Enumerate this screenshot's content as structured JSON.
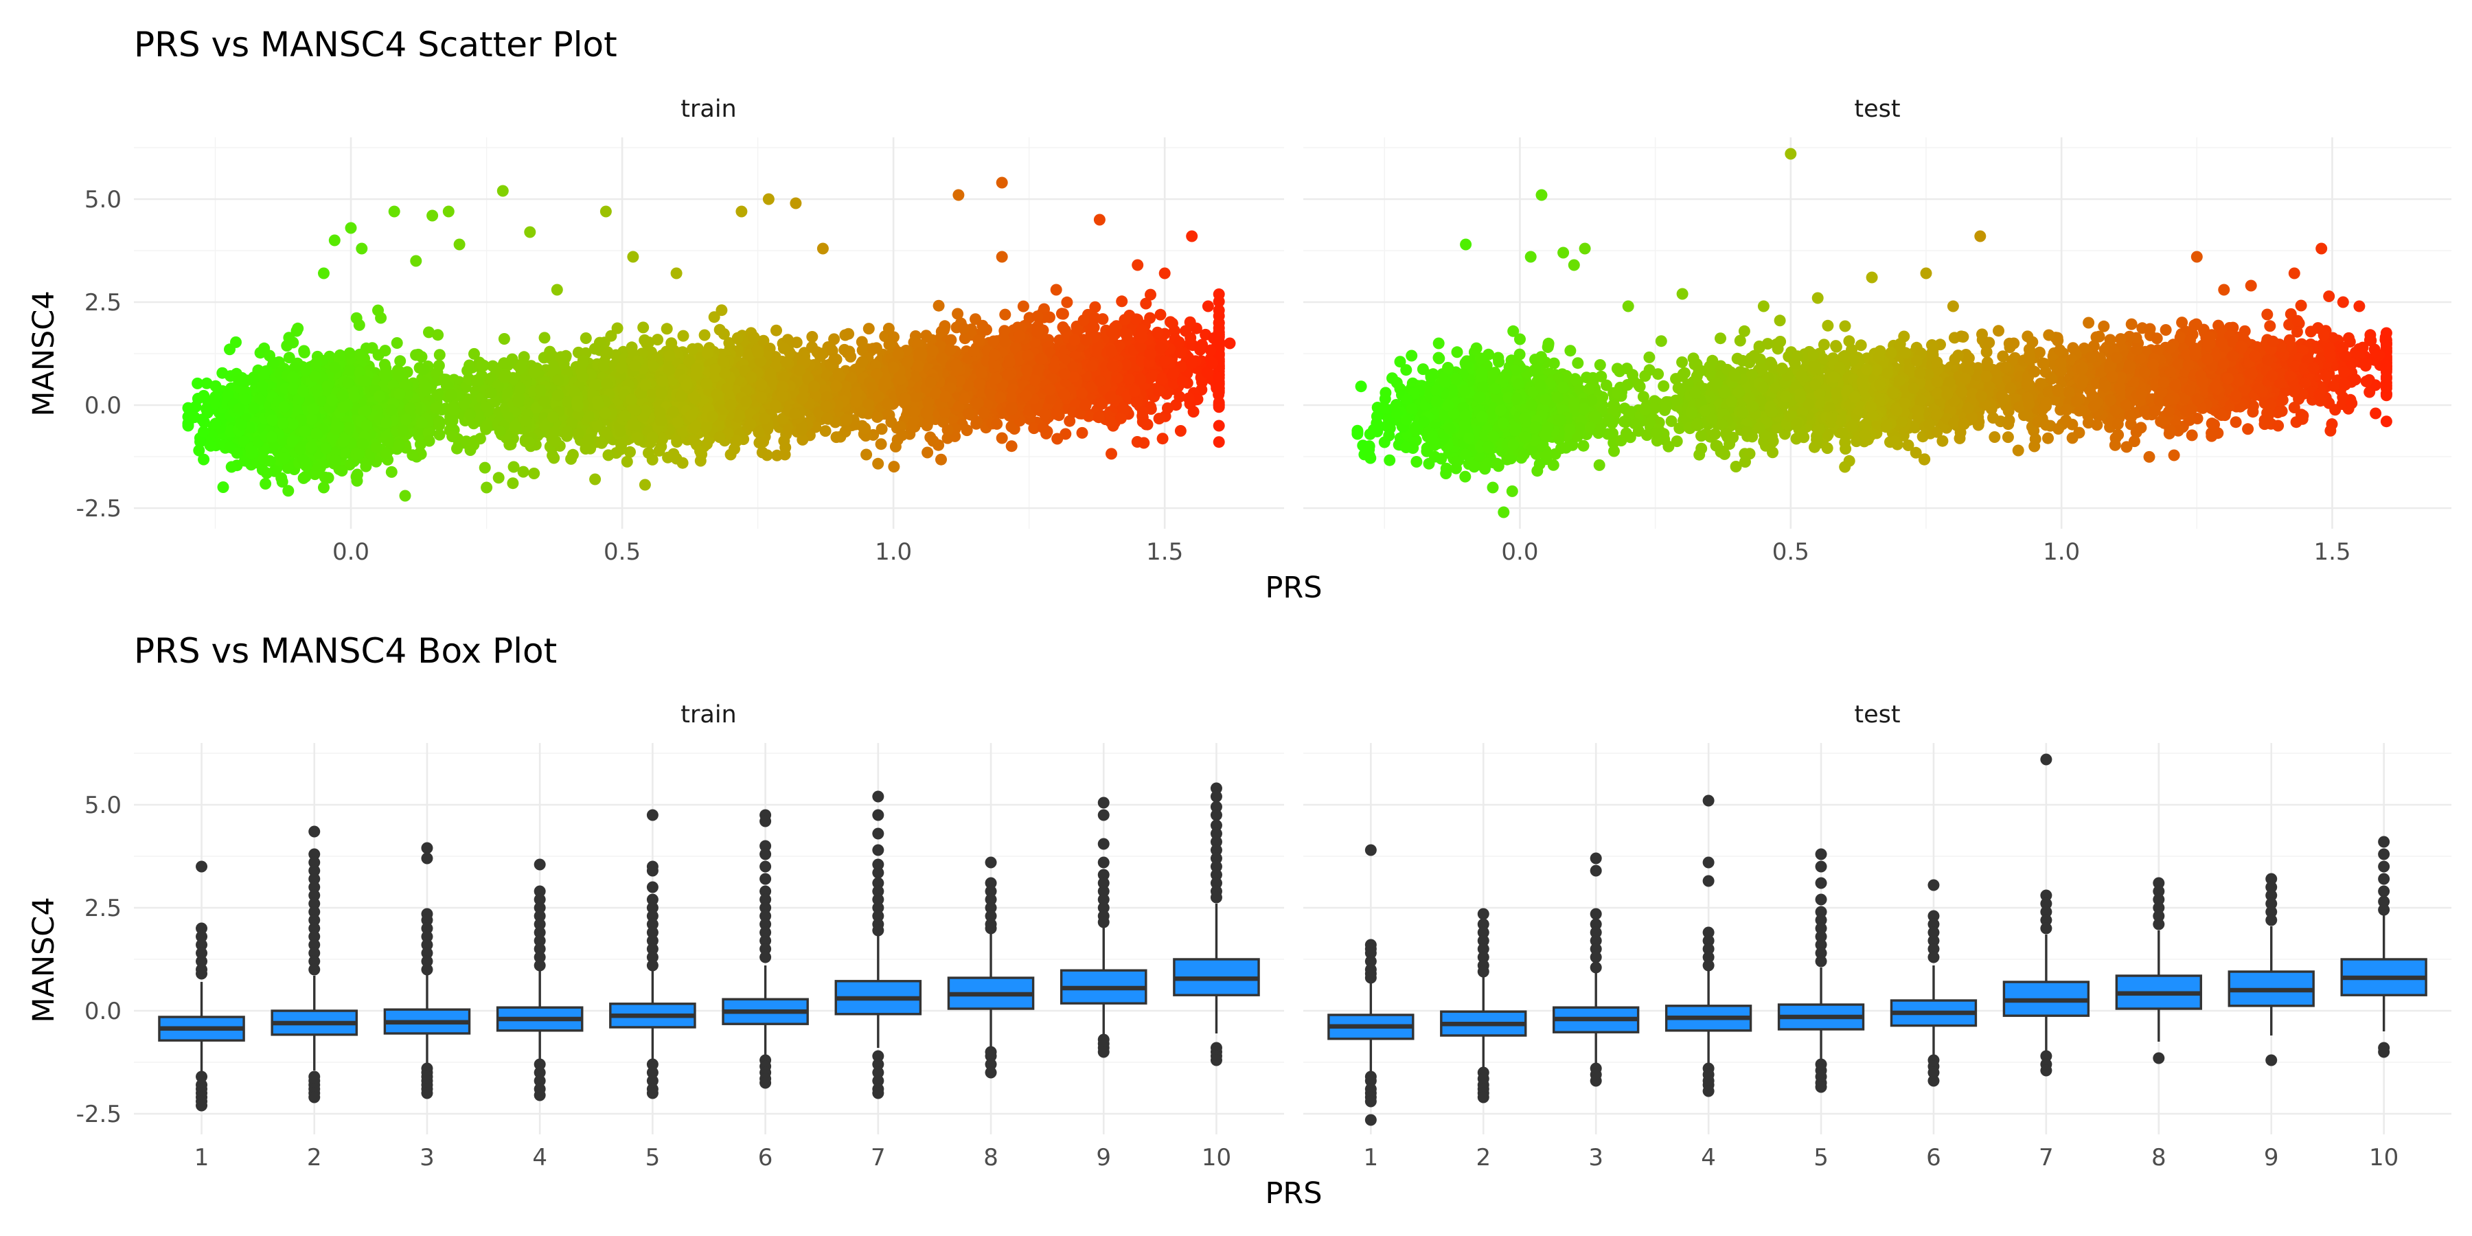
{
  "chart_data": [
    {
      "type": "scatter",
      "title": "PRS vs MANSC4 Scatter Plot",
      "xlabel": "PRS",
      "ylabel": "MANSC4",
      "facets": [
        "train",
        "test"
      ],
      "xlim": [
        -0.4,
        1.72
      ],
      "ylim": [
        -3.0,
        6.5
      ],
      "x_ticks": [
        0.0,
        0.5,
        1.0,
        1.5
      ],
      "x_tick_labels": [
        "0.0",
        "0.5",
        "1.0",
        "1.5"
      ],
      "y_ticks": [
        -2.5,
        0.0,
        2.5,
        5.0
      ],
      "y_tick_labels": [
        "-2.5",
        "0.0",
        "2.5",
        "5.0"
      ],
      "grid": true,
      "color_scale": {
        "low": "#33ff00",
        "mid": "#b3b300",
        "high": "#ff2200"
      },
      "points": {
        "train": [
          [
            -0.3,
            -0.5
          ],
          [
            -0.28,
            -1.1
          ],
          [
            -0.25,
            0.2
          ],
          [
            -0.22,
            -1.5
          ],
          [
            -0.2,
            0.6
          ],
          [
            -0.15,
            1.2
          ],
          [
            -0.1,
            1.8
          ],
          [
            -0.05,
            3.2
          ],
          [
            -0.03,
            4.0
          ],
          [
            0.0,
            4.3
          ],
          [
            0.02,
            3.8
          ],
          [
            0.05,
            2.3
          ],
          [
            0.08,
            4.7
          ],
          [
            0.12,
            3.5
          ],
          [
            0.15,
            4.6
          ],
          [
            0.18,
            4.7
          ],
          [
            0.2,
            3.9
          ],
          [
            0.28,
            5.2
          ],
          [
            0.33,
            4.2
          ],
          [
            0.38,
            2.8
          ],
          [
            0.47,
            4.7
          ],
          [
            0.52,
            3.6
          ],
          [
            0.6,
            3.2
          ],
          [
            0.72,
            4.7
          ],
          [
            0.77,
            5.0
          ],
          [
            0.82,
            4.9
          ],
          [
            0.87,
            3.8
          ],
          [
            0.95,
            -1.2
          ],
          [
            1.12,
            5.1
          ],
          [
            1.2,
            5.4
          ],
          [
            1.2,
            3.6
          ],
          [
            1.3,
            2.8
          ],
          [
            1.38,
            4.5
          ],
          [
            1.45,
            3.4
          ],
          [
            1.5,
            3.2
          ],
          [
            1.55,
            4.1
          ],
          [
            1.58,
            2.4
          ],
          [
            1.6,
            -0.5
          ],
          [
            1.62,
            1.5
          ],
          [
            1.1,
            -0.6
          ],
          [
            1.2,
            -0.8
          ],
          [
            0.45,
            -1.8
          ],
          [
            0.25,
            -2.0
          ],
          [
            0.1,
            -2.2
          ],
          [
            -0.05,
            -2.0
          ],
          [
            0.3,
            -1.5
          ],
          [
            0.6,
            -1.3
          ],
          [
            0.7,
            -1.2
          ],
          [
            0.8,
            -1.2
          ],
          [
            1.4,
            -0.4
          ]
        ],
        "test": [
          [
            -0.3,
            -0.7
          ],
          [
            -0.27,
            -0.6
          ],
          [
            -0.25,
            -0.9
          ],
          [
            -0.2,
            1.2
          ],
          [
            -0.15,
            1.5
          ],
          [
            -0.1,
            3.9
          ],
          [
            -0.05,
            -2.0
          ],
          [
            -0.03,
            -2.6
          ],
          [
            0.0,
            1.6
          ],
          [
            0.02,
            3.6
          ],
          [
            0.04,
            5.1
          ],
          [
            0.08,
            3.7
          ],
          [
            0.1,
            3.4
          ],
          [
            0.12,
            3.8
          ],
          [
            0.2,
            2.4
          ],
          [
            0.3,
            2.7
          ],
          [
            0.45,
            2.4
          ],
          [
            0.5,
            6.1
          ],
          [
            0.55,
            2.6
          ],
          [
            0.6,
            -1.5
          ],
          [
            0.65,
            3.1
          ],
          [
            0.75,
            3.2
          ],
          [
            0.8,
            2.4
          ],
          [
            0.85,
            4.1
          ],
          [
            0.95,
            -1.0
          ],
          [
            1.05,
            2.0
          ],
          [
            1.2,
            -0.6
          ],
          [
            1.25,
            3.6
          ],
          [
            1.3,
            2.8
          ],
          [
            1.35,
            2.9
          ],
          [
            1.38,
            2.2
          ],
          [
            1.43,
            3.2
          ],
          [
            1.48,
            3.8
          ],
          [
            1.52,
            2.5
          ],
          [
            1.55,
            2.4
          ],
          [
            1.58,
            1.2
          ],
          [
            1.58,
            -0.2
          ],
          [
            1.4,
            -0.5
          ],
          [
            1.1,
            -0.8
          ]
        ]
      }
    },
    {
      "type": "box",
      "title": "PRS vs MANSC4 Box Plot",
      "xlabel": "PRS",
      "ylabel": "MANSC4",
      "facets": [
        "train",
        "test"
      ],
      "categories": [
        "1",
        "2",
        "3",
        "4",
        "5",
        "6",
        "7",
        "8",
        "9",
        "10"
      ],
      "ylim": [
        -3.0,
        6.5
      ],
      "y_ticks": [
        -2.5,
        0.0,
        2.5,
        5.0
      ],
      "y_tick_labels": [
        "-2.5",
        "0.0",
        "2.5",
        "5.0"
      ],
      "grid": true,
      "box_fill": "#1e90ff",
      "box_line": "#333333",
      "boxes": {
        "train": [
          {
            "q1": -0.72,
            "median": -0.43,
            "q3": -0.15,
            "whisker_low": -1.55,
            "whisker_high": 0.7,
            "outliers": [
              3.5,
              2.0,
              1.8,
              1.6,
              1.4,
              1.2,
              1.0,
              0.9,
              -1.6,
              -1.8,
              -1.9,
              -2.0,
              -2.1,
              -2.2,
              -2.3
            ]
          },
          {
            "q1": -0.58,
            "median": -0.3,
            "q3": 0.0,
            "whisker_low": -1.45,
            "whisker_high": 0.85,
            "outliers": [
              4.35,
              3.8,
              3.6,
              3.4,
              3.2,
              3.0,
              2.8,
              2.6,
              2.4,
              2.2,
              2.0,
              1.8,
              1.6,
              1.4,
              1.2,
              1.0,
              -1.6,
              -1.7,
              -1.8,
              -1.9,
              -2.0,
              -2.1
            ]
          },
          {
            "q1": -0.55,
            "median": -0.28,
            "q3": 0.03,
            "whisker_low": -1.3,
            "whisker_high": 0.95,
            "outliers": [
              3.95,
              3.7,
              2.35,
              2.2,
              2.0,
              1.8,
              1.6,
              1.4,
              1.2,
              1.0,
              -1.4,
              -1.5,
              -1.6,
              -1.7,
              -1.8,
              -1.9,
              -2.0
            ]
          },
          {
            "q1": -0.48,
            "median": -0.2,
            "q3": 0.08,
            "whisker_low": -1.25,
            "whisker_high": 1.0,
            "outliers": [
              3.55,
              2.9,
              2.7,
              2.5,
              2.3,
              2.1,
              1.9,
              1.7,
              1.5,
              1.3,
              1.1,
              -1.3,
              -1.5,
              -1.7,
              -1.9,
              -2.05
            ]
          },
          {
            "q1": -0.4,
            "median": -0.12,
            "q3": 0.17,
            "whisker_low": -1.2,
            "whisker_high": 1.05,
            "outliers": [
              4.75,
              3.5,
              3.4,
              3.0,
              2.7,
              2.5,
              2.3,
              2.1,
              1.9,
              1.7,
              1.5,
              1.3,
              1.1,
              -1.3,
              -1.5,
              -1.7,
              -1.9,
              -2.0
            ]
          },
          {
            "q1": -0.32,
            "median": -0.02,
            "q3": 0.28,
            "whisker_low": -1.1,
            "whisker_high": 1.1,
            "outliers": [
              4.75,
              4.6,
              4.0,
              3.8,
              3.5,
              3.2,
              2.9,
              2.7,
              2.5,
              2.3,
              2.1,
              1.9,
              1.7,
              1.5,
              1.3,
              -1.2,
              -1.35,
              -1.5,
              -1.65,
              -1.75
            ]
          },
          {
            "q1": -0.08,
            "median": 0.3,
            "q3": 0.72,
            "whisker_low": -0.9,
            "whisker_high": 1.85,
            "outliers": [
              5.2,
              4.75,
              4.3,
              3.9,
              3.55,
              3.35,
              3.1,
              2.9,
              2.7,
              2.5,
              2.3,
              2.1,
              1.95,
              -1.1,
              -1.3,
              -1.5,
              -1.7,
              -1.9,
              -2.0
            ]
          },
          {
            "q1": 0.05,
            "median": 0.4,
            "q3": 0.8,
            "whisker_low": -0.9,
            "whisker_high": 1.9,
            "outliers": [
              3.6,
              3.1,
              2.9,
              2.7,
              2.5,
              2.3,
              2.1,
              2.0,
              -1.0,
              -1.1,
              -1.3,
              -1.5
            ]
          },
          {
            "q1": 0.18,
            "median": 0.55,
            "q3": 0.98,
            "whisker_low": -0.6,
            "whisker_high": 2.05,
            "outliers": [
              5.05,
              4.75,
              4.05,
              3.6,
              3.3,
              3.1,
              2.9,
              2.7,
              2.5,
              2.3,
              2.15,
              -0.7,
              -0.8,
              -0.9,
              -1.0
            ]
          },
          {
            "q1": 0.38,
            "median": 0.78,
            "q3": 1.25,
            "whisker_low": -0.55,
            "whisker_high": 2.6,
            "outliers": [
              5.4,
              5.2,
              4.95,
              4.75,
              4.5,
              4.3,
              4.1,
              3.9,
              3.7,
              3.5,
              3.3,
              3.1,
              2.9,
              2.75,
              -0.9,
              -1.0,
              -1.1,
              -1.2
            ]
          }
        ],
        "test": [
          {
            "q1": -0.68,
            "median": -0.38,
            "q3": -0.1,
            "whisker_low": -1.5,
            "whisker_high": 0.7,
            "outliers": [
              3.9,
              1.6,
              1.5,
              1.4,
              1.2,
              1.0,
              0.9,
              0.8,
              -1.6,
              -1.7,
              -1.9,
              -2.0,
              -2.1,
              -2.2,
              -2.65
            ]
          },
          {
            "q1": -0.6,
            "median": -0.32,
            "q3": -0.02,
            "whisker_low": -1.4,
            "whisker_high": 0.85,
            "outliers": [
              2.35,
              2.1,
              1.9,
              1.7,
              1.5,
              1.3,
              1.1,
              0.95,
              -1.5,
              -1.65,
              -1.8,
              -1.9,
              -2.0,
              -2.1
            ]
          },
          {
            "q1": -0.52,
            "median": -0.2,
            "q3": 0.08,
            "whisker_low": -1.3,
            "whisker_high": 0.95,
            "outliers": [
              3.7,
              3.4,
              2.35,
              2.1,
              1.9,
              1.7,
              1.5,
              1.3,
              1.05,
              -1.4,
              -1.55,
              -1.7
            ]
          },
          {
            "q1": -0.48,
            "median": -0.17,
            "q3": 0.12,
            "whisker_low": -1.3,
            "whisker_high": 1.0,
            "outliers": [
              5.1,
              3.6,
              3.15,
              1.9,
              1.7,
              1.5,
              1.3,
              1.1,
              -1.4,
              -1.55,
              -1.7,
              -1.8,
              -1.95
            ]
          },
          {
            "q1": -0.45,
            "median": -0.15,
            "q3": 0.15,
            "whisker_low": -1.25,
            "whisker_high": 1.05,
            "outliers": [
              3.8,
              3.5,
              3.1,
              2.7,
              2.4,
              2.2,
              2.0,
              1.8,
              1.6,
              1.4,
              1.2,
              -1.3,
              -1.45,
              -1.6,
              -1.75,
              -1.85
            ]
          },
          {
            "q1": -0.36,
            "median": -0.05,
            "q3": 0.25,
            "whisker_low": -1.1,
            "whisker_high": 1.1,
            "outliers": [
              3.05,
              2.3,
              2.1,
              1.9,
              1.7,
              1.5,
              1.3,
              -1.2,
              -1.35,
              -1.5,
              -1.7
            ]
          },
          {
            "q1": -0.12,
            "median": 0.25,
            "q3": 0.7,
            "whisker_low": -1.0,
            "whisker_high": 1.85,
            "outliers": [
              6.1,
              2.8,
              2.6,
              2.4,
              2.2,
              2.0,
              -1.1,
              -1.3,
              -1.45
            ]
          },
          {
            "q1": 0.05,
            "median": 0.42,
            "q3": 0.85,
            "whisker_low": -0.75,
            "whisker_high": 1.95,
            "outliers": [
              3.1,
              2.9,
              2.7,
              2.5,
              2.3,
              2.1,
              -1.15
            ]
          },
          {
            "q1": 0.12,
            "median": 0.5,
            "q3": 0.95,
            "whisker_low": -0.6,
            "whisker_high": 2.05,
            "outliers": [
              3.2,
              3.0,
              2.8,
              2.6,
              2.4,
              2.2,
              -1.2
            ]
          },
          {
            "q1": 0.38,
            "median": 0.8,
            "q3": 1.25,
            "whisker_low": -0.5,
            "whisker_high": 2.35,
            "outliers": [
              4.1,
              3.8,
              3.5,
              3.2,
              2.9,
              2.65,
              2.45,
              -0.9,
              -1.0
            ]
          }
        ]
      }
    }
  ]
}
